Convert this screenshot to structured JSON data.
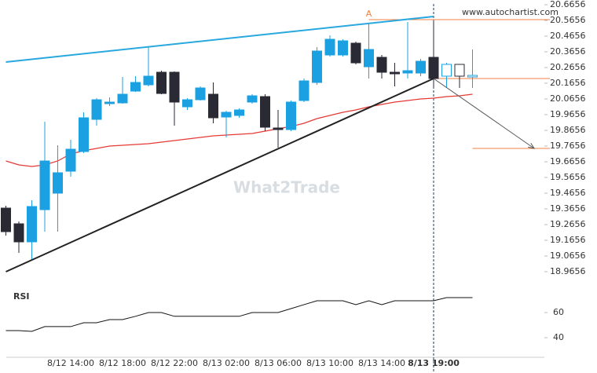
{
  "chart_data": {
    "type": "candlestick",
    "source": "www.autochartist.com",
    "watermark": "What2Trade",
    "categories": [
      null,
      null,
      null,
      null,
      null,
      "8/12 14:00",
      null,
      null,
      null,
      "8/12 18:00",
      null,
      null,
      null,
      "8/12 22:00",
      null,
      null,
      null,
      "8/13 02:00",
      null,
      null,
      null,
      "8/13 06:00",
      null,
      null,
      null,
      "8/13 10:00",
      null,
      null,
      null,
      "8/13 14:00",
      null,
      null,
      null,
      "8/13 19:00"
    ],
    "up_color": "#1ba1e2",
    "down_color": "#2a2a35",
    "candles": {
      "open": [
        19.3706,
        19.2706,
        19.1556,
        19.3606,
        19.4656,
        19.6056,
        19.7306,
        19.9356,
        20.0356,
        20.0406,
        20.1156,
        20.1556,
        20.2356,
        20.2356,
        20.0156,
        20.0606,
        20.0956,
        19.9506,
        19.9606,
        20.0456,
        20.0806,
        19.8806,
        19.8706,
        20.0556,
        20.1706,
        20.3456,
        20.3456,
        20.4206,
        20.2706,
        20.3306,
        20.2356,
        20.2306,
        20.2306,
        20.3306
      ],
      "high": [
        19.3856,
        19.2856,
        19.4206,
        19.9206,
        19.7706,
        19.8056,
        19.9806,
        20.0706,
        20.0756,
        20.2056,
        20.2106,
        20.3956,
        20.2456,
        20.2406,
        20.0706,
        20.1456,
        20.1706,
        19.9906,
        20.0056,
        20.0956,
        20.0956,
        19.9956,
        20.0556,
        20.1956,
        20.3956,
        20.4706,
        20.4456,
        20.4306,
        20.5456,
        20.3456,
        20.2956,
        20.5556,
        20.3206,
        20.5556
      ],
      "low": [
        19.1956,
        19.0856,
        19.0456,
        19.2206,
        19.2206,
        19.5706,
        19.7206,
        19.8956,
        20.0206,
        20.0356,
        20.1106,
        20.1456,
        20.0956,
        19.8956,
        19.9956,
        20.0556,
        19.9106,
        19.8206,
        19.9456,
        20.0356,
        19.8606,
        19.7556,
        19.8606,
        20.0456,
        20.1556,
        20.3356,
        20.3356,
        20.2856,
        20.1956,
        20.1956,
        20.1456,
        20.1956,
        20.2106,
        20.1456
      ],
      "close": [
        19.2206,
        19.1556,
        19.3806,
        19.6706,
        19.5956,
        19.7456,
        19.9456,
        20.0606,
        20.0456,
        20.0956,
        20.1706,
        20.2106,
        20.1006,
        20.0456,
        20.0606,
        20.1356,
        19.9456,
        19.9806,
        19.9956,
        20.0856,
        19.8856,
        19.8706,
        20.0456,
        20.1806,
        20.3706,
        20.4456,
        20.4356,
        20.2956,
        20.3806,
        20.2356,
        20.2256,
        20.2456,
        20.3056,
        20.1956
      ]
    },
    "projected": {
      "open": [
        20.2106,
        20.2856,
        20.2056
      ],
      "high": [
        20.2956,
        20.2856,
        20.3806
      ],
      "low": [
        20.1356,
        20.1356,
        20.1356
      ],
      "close": [
        20.2856,
        20.2106,
        20.2156
      ]
    },
    "ma": {
      "color": "#e53935",
      "values": [
        19.6706,
        19.6456,
        19.6356,
        19.6456,
        19.6706,
        19.7156,
        19.7356,
        19.7506,
        19.7656,
        19.7706,
        19.7756,
        19.7806,
        19.7906,
        19.8006,
        19.8106,
        19.8206,
        19.8306,
        19.8356,
        19.8406,
        19.8456,
        19.8606,
        19.8756,
        19.8906,
        19.9106,
        19.9406,
        19.9606,
        19.9806,
        19.9956,
        20.0156,
        20.0306,
        20.0456,
        20.0556,
        20.0656,
        20.0706,
        20.0806,
        20.0856,
        20.0956
      ]
    },
    "trendlines": [
      {
        "color": "#29a8e0",
        "from": [
          0,
          20.3006
        ],
        "to": [
          33,
          20.5906
        ]
      },
      {
        "color": "#222222",
        "from": [
          0,
          18.9656
        ],
        "to": [
          33,
          20.1956
        ]
      }
    ],
    "arrow": {
      "color": "#555555",
      "from": [
        33,
        20.1956
      ],
      "to": [
        40.76,
        19.7506
      ]
    },
    "levels": [
      {
        "value": 20.5706,
        "from": 28,
        "label": "A"
      },
      {
        "value": 20.1956,
        "from": 33
      },
      {
        "value": 19.7506,
        "from": 36
      }
    ],
    "level_color": "#f08040",
    "ylim": [
      18.9656,
      20.6656
    ],
    "yticks": [
      20.6656,
      20.5656,
      20.4656,
      20.3656,
      20.2656,
      20.1656,
      20.0656,
      19.9656,
      19.8656,
      19.7656,
      19.6656,
      19.5656,
      19.4656,
      19.3656,
      19.2656,
      19.1656,
      19.0656,
      18.9656
    ],
    "rsi": {
      "label": "RSI",
      "color": "#111111",
      "values": [
        45.6,
        45.6,
        45,
        48.8,
        48.8,
        48.8,
        51.9,
        51.9,
        54.4,
        54.4,
        57,
        60,
        60,
        57,
        57,
        57,
        57,
        57,
        57,
        60,
        60,
        60,
        63.1,
        66.3,
        69.4,
        69.4,
        69.4,
        66.3,
        69.4,
        66.3,
        69.4,
        69.4,
        69.4,
        69.4,
        71.9,
        71.9,
        71.9
      ],
      "ylim": [
        25,
        80
      ],
      "yticks": [
        60,
        40
      ]
    }
  }
}
